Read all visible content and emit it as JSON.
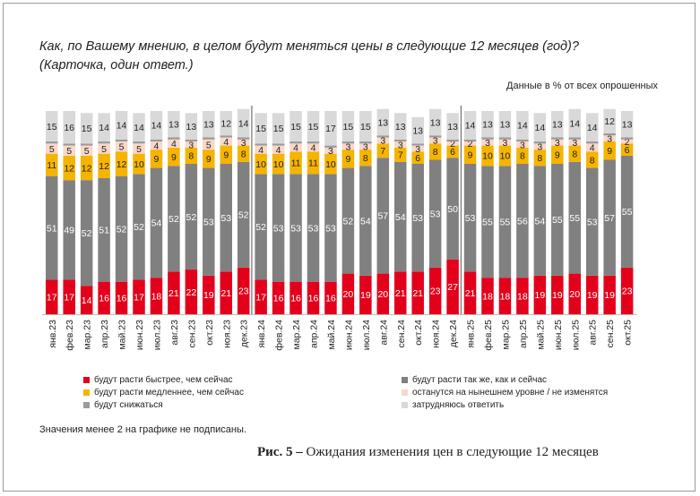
{
  "title_line1": "Как, по Вашему мнению, в целом будут меняться цены в следующие 12 месяцев (год)?",
  "title_line2": "(Карточка, один ответ.)",
  "unit_note": "Данные в % от всех опрошенных",
  "footnote": "Значения менее 2 на графике не подписаны.",
  "caption_bold": "Рис. 5 –",
  "caption_text": " Ожидания изменения цен в следующие 12 месяцев",
  "chart_data": {
    "type": "bar",
    "stacked": true,
    "label_min": 2,
    "categories": [
      "янв.23",
      "фев.23",
      "мар.23",
      "апр.23",
      "май.23",
      "июн.23",
      "июл.23",
      "авг.23",
      "сен.23",
      "окт.23",
      "ноя.23",
      "дек.23",
      "янв.24",
      "фев.24",
      "мар.24",
      "апр.24",
      "май.24",
      "июн.24",
      "июл.24",
      "авг.24",
      "сен.24",
      "окт.24",
      "ноя.24",
      "дек.24",
      "янв.25",
      "фев.25",
      "мар.25",
      "апр.25",
      "май.25",
      "июн.25",
      "июл.25",
      "авг.25",
      "сен.25",
      "окт.25"
    ],
    "series": [
      {
        "name": "будут расти быстрее, чем сейчас",
        "color": "#e3001b",
        "text_color": "#ffffff",
        "values": [
          17,
          17,
          14,
          16,
          16,
          17,
          18,
          21,
          22,
          19,
          21,
          23,
          17,
          16,
          16,
          16,
          16,
          20,
          19,
          20,
          21,
          21,
          23,
          27,
          21,
          18,
          18,
          18,
          19,
          19,
          20,
          19,
          19,
          23
        ]
      },
      {
        "name": "будут расти так же, как и сейчас",
        "color": "#808080",
        "text_color": "#ffffff",
        "values": [
          51,
          49,
          52,
          51,
          52,
          52,
          54,
          52,
          52,
          53,
          53,
          52,
          52,
          53,
          53,
          53,
          53,
          52,
          54,
          57,
          54,
          53,
          53,
          50,
          53,
          55,
          55,
          56,
          54,
          55,
          55,
          53,
          57,
          55
        ]
      },
      {
        "name": "будут расти медленнее, чем сейчас",
        "color": "#f5b400",
        "text_color": "#222222",
        "values": [
          11,
          12,
          12,
          12,
          12,
          10,
          9,
          9,
          8,
          9,
          9,
          8,
          10,
          10,
          11,
          11,
          10,
          9,
          8,
          7,
          7,
          6,
          8,
          6,
          9,
          10,
          10,
          8,
          8,
          9,
          8,
          8,
          9,
          6
        ]
      },
      {
        "name": "останутся на нынешнем уровне / не изменятся",
        "color": "#fad7c8",
        "text_color": "#222222",
        "values": [
          5,
          5,
          5,
          5,
          5,
          5,
          4,
          4,
          3,
          5,
          4,
          3,
          4,
          4,
          4,
          4,
          3,
          3,
          3,
          3,
          3,
          3,
          3,
          2,
          2,
          3,
          3,
          3,
          3,
          3,
          3,
          4,
          3,
          2
        ]
      },
      {
        "name": "будут снижаться",
        "color": "#9a9a9a",
        "text_color": "#222222",
        "values": [
          1,
          1,
          1,
          1,
          1,
          1,
          1,
          1,
          1,
          1,
          1,
          1,
          1,
          1,
          1,
          1,
          1,
          1,
          1,
          1,
          1,
          1,
          1,
          1,
          1,
          1,
          1,
          1,
          1,
          1,
          1,
          1,
          1,
          1
        ]
      },
      {
        "name": "затрудняюсь ответить",
        "color": "#d9d9d9",
        "text_color": "#222222",
        "values": [
          15,
          16,
          15,
          14,
          14,
          14,
          14,
          13,
          13,
          13,
          12,
          14,
          15,
          15,
          15,
          15,
          17,
          15,
          15,
          13,
          13,
          13,
          13,
          13,
          14,
          13,
          13,
          14,
          14,
          13,
          14,
          14,
          12,
          13
        ]
      }
    ],
    "legend": [
      {
        "label": "будут расти быстрее, чем сейчас",
        "color": "#e3001b"
      },
      {
        "label": "будут расти так же, как и сейчас",
        "color": "#808080"
      },
      {
        "label": "будут расти медленнее, чем сейчас",
        "color": "#f5b400"
      },
      {
        "label": "останутся на нынешнем уровне / не изменятся",
        "color": "#fad7c8"
      },
      {
        "label": "будут снижаться",
        "color": "#9a9a9a"
      },
      {
        "label": "затрудняюсь ответить",
        "color": "#d9d9d9"
      }
    ],
    "year_separators_after": [
      11,
      23
    ]
  }
}
